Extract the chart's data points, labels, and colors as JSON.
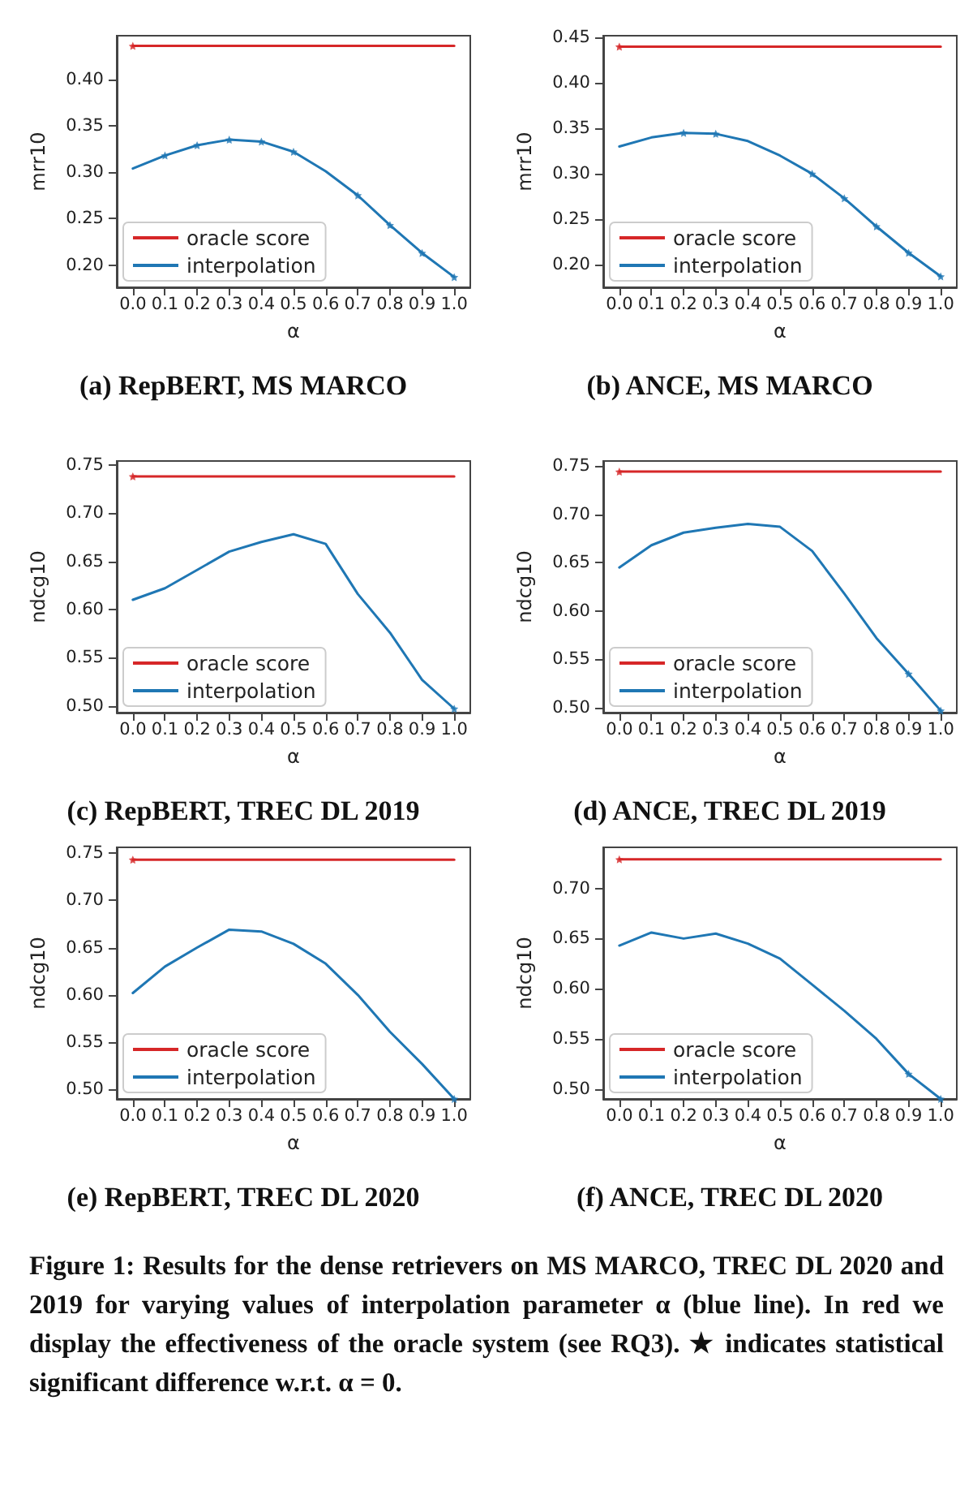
{
  "chart_data": [
    {
      "type": "line",
      "title": "(a) RepBERT, MS MARCO",
      "xlabel": "α",
      "ylabel": "mrr10",
      "legend": "bottom left",
      "grid": false,
      "marker": "none",
      "line_style": "solid",
      "xlim": [
        -0.05,
        1.05
      ],
      "xticks": [
        {
          "value": 0,
          "label": "0.0"
        },
        {
          "value": 0.1,
          "label": "0.1"
        },
        {
          "value": 0.2,
          "label": "0.2"
        },
        {
          "value": 0.3,
          "label": "0.3"
        },
        {
          "value": 0.4,
          "label": "0.4"
        },
        {
          "value": 0.5,
          "label": "0.5"
        },
        {
          "value": 0.6,
          "label": "0.6"
        },
        {
          "value": 0.7,
          "label": "0.7"
        },
        {
          "value": 0.8,
          "label": "0.8"
        },
        {
          "value": 0.9,
          "label": "0.9"
        },
        {
          "value": 1,
          "label": "1.0"
        }
      ],
      "ylim": [
        0.176,
        0.447
      ],
      "yticks": [
        {
          "value": 0.2,
          "label": "0.20"
        },
        {
          "value": 0.25,
          "label": "0.25"
        },
        {
          "value": 0.3,
          "label": "0.30"
        },
        {
          "value": 0.35,
          "label": "0.35"
        },
        {
          "value": 0.4,
          "label": "0.40"
        }
      ],
      "series": [
        {
          "name": "oracle score",
          "color": "#d62728",
          "x": [
            0,
            1
          ],
          "values": [
            0.436,
            0.436
          ]
        },
        {
          "name": "interpolation",
          "color": "#1f77b4",
          "x": [
            0,
            0.1,
            0.2,
            0.3,
            0.4,
            0.5,
            0.6,
            0.7,
            0.8,
            0.9,
            1
          ],
          "values": [
            0.304,
            0.318,
            0.329,
            0.335,
            0.333,
            0.322,
            0.301,
            0.275,
            0.243,
            0.213,
            0.187
          ]
        },
        {
          "type": "scatter",
          "marker": "star",
          "color": "#d62728",
          "x": [
            0
          ],
          "values": [
            0.436
          ]
        },
        {
          "type": "scatter",
          "marker": "star",
          "color": "#1f77b4",
          "x": [
            0.1,
            0.2,
            0.3,
            0.4,
            0.5,
            0.7,
            0.8,
            0.9,
            1
          ],
          "values": [
            0.318,
            0.329,
            0.335,
            0.333,
            0.322,
            0.275,
            0.243,
            0.213,
            0.187
          ]
        }
      ]
    },
    {
      "type": "line",
      "title": "(b) ANCE, MS MARCO",
      "xlabel": "α",
      "ylabel": "mrr10",
      "legend": "bottom left",
      "grid": false,
      "marker": "none",
      "line_style": "solid",
      "xlim": [
        -0.05,
        1.05
      ],
      "xticks": [
        {
          "value": 0,
          "label": "0.0"
        },
        {
          "value": 0.1,
          "label": "0.1"
        },
        {
          "value": 0.2,
          "label": "0.2"
        },
        {
          "value": 0.3,
          "label": "0.3"
        },
        {
          "value": 0.4,
          "label": "0.4"
        },
        {
          "value": 0.5,
          "label": "0.5"
        },
        {
          "value": 0.6,
          "label": "0.6"
        },
        {
          "value": 0.7,
          "label": "0.7"
        },
        {
          "value": 0.8,
          "label": "0.8"
        },
        {
          "value": 0.9,
          "label": "0.9"
        },
        {
          "value": 1,
          "label": "1.0"
        }
      ],
      "ylim": [
        0.175,
        0.452
      ],
      "yticks": [
        {
          "value": 0.2,
          "label": "0.20"
        },
        {
          "value": 0.25,
          "label": "0.25"
        },
        {
          "value": 0.3,
          "label": "0.30"
        },
        {
          "value": 0.35,
          "label": "0.35"
        },
        {
          "value": 0.4,
          "label": "0.40"
        },
        {
          "value": 0.45,
          "label": "0.45"
        }
      ],
      "series": [
        {
          "name": "oracle score",
          "color": "#d62728",
          "x": [
            0,
            1
          ],
          "values": [
            0.44,
            0.44
          ]
        },
        {
          "name": "interpolation",
          "color": "#1f77b4",
          "x": [
            0,
            0.1,
            0.2,
            0.3,
            0.4,
            0.5,
            0.6,
            0.7,
            0.8,
            0.9,
            1
          ],
          "values": [
            0.33,
            0.34,
            0.345,
            0.344,
            0.336,
            0.32,
            0.3,
            0.273,
            0.242,
            0.213,
            0.187
          ]
        },
        {
          "type": "scatter",
          "marker": "star",
          "color": "#d62728",
          "x": [
            0
          ],
          "values": [
            0.44
          ]
        },
        {
          "type": "scatter",
          "marker": "star",
          "color": "#1f77b4",
          "x": [
            0.2,
            0.3,
            0.6,
            0.7,
            0.8,
            0.9,
            1
          ],
          "values": [
            0.345,
            0.344,
            0.3,
            0.273,
            0.242,
            0.213,
            0.187
          ]
        }
      ]
    },
    {
      "type": "line",
      "title": "(c) RepBERT, TREC DL 2019",
      "xlabel": "α",
      "ylabel": "ndcg10",
      "legend": "bottom left",
      "grid": false,
      "marker": "none",
      "line_style": "solid",
      "xlim": [
        -0.05,
        1.05
      ],
      "xticks": [
        {
          "value": 0,
          "label": "0.0"
        },
        {
          "value": 0.1,
          "label": "0.1"
        },
        {
          "value": 0.2,
          "label": "0.2"
        },
        {
          "value": 0.3,
          "label": "0.3"
        },
        {
          "value": 0.4,
          "label": "0.4"
        },
        {
          "value": 0.5,
          "label": "0.5"
        },
        {
          "value": 0.6,
          "label": "0.6"
        },
        {
          "value": 0.7,
          "label": "0.7"
        },
        {
          "value": 0.8,
          "label": "0.8"
        },
        {
          "value": 0.9,
          "label": "0.9"
        },
        {
          "value": 1,
          "label": "1.0"
        }
      ],
      "ylim": [
        0.493,
        0.754
      ],
      "yticks": [
        {
          "value": 0.5,
          "label": "0.50"
        },
        {
          "value": 0.55,
          "label": "0.55"
        },
        {
          "value": 0.6,
          "label": "0.60"
        },
        {
          "value": 0.65,
          "label": "0.65"
        },
        {
          "value": 0.7,
          "label": "0.70"
        },
        {
          "value": 0.75,
          "label": "0.75"
        }
      ],
      "series": [
        {
          "name": "oracle score",
          "color": "#d62728",
          "x": [
            0,
            1
          ],
          "values": [
            0.738,
            0.738
          ]
        },
        {
          "name": "interpolation",
          "color": "#1f77b4",
          "x": [
            0,
            0.1,
            0.2,
            0.3,
            0.4,
            0.5,
            0.6,
            0.7,
            0.8,
            0.9,
            1
          ],
          "values": [
            0.61,
            0.622,
            0.641,
            0.66,
            0.67,
            0.678,
            0.668,
            0.616,
            0.576,
            0.527,
            0.497
          ]
        },
        {
          "type": "scatter",
          "marker": "star",
          "color": "#d62728",
          "x": [
            0
          ],
          "values": [
            0.738
          ]
        },
        {
          "type": "scatter",
          "marker": "star",
          "color": "#1f77b4",
          "x": [
            1
          ],
          "values": [
            0.497
          ]
        }
      ]
    },
    {
      "type": "line",
      "title": "(d) ANCE, TREC DL 2019",
      "xlabel": "α",
      "ylabel": "ndcg10",
      "legend": "bottom left",
      "grid": false,
      "marker": "none",
      "line_style": "solid",
      "xlim": [
        -0.05,
        1.05
      ],
      "xticks": [
        {
          "value": 0,
          "label": "0.0"
        },
        {
          "value": 0.1,
          "label": "0.1"
        },
        {
          "value": 0.2,
          "label": "0.2"
        },
        {
          "value": 0.3,
          "label": "0.3"
        },
        {
          "value": 0.4,
          "label": "0.4"
        },
        {
          "value": 0.5,
          "label": "0.5"
        },
        {
          "value": 0.6,
          "label": "0.6"
        },
        {
          "value": 0.7,
          "label": "0.7"
        },
        {
          "value": 0.8,
          "label": "0.8"
        },
        {
          "value": 0.9,
          "label": "0.9"
        },
        {
          "value": 1,
          "label": "1.0"
        }
      ],
      "ylim": [
        0.495,
        0.755
      ],
      "yticks": [
        {
          "value": 0.5,
          "label": "0.50"
        },
        {
          "value": 0.55,
          "label": "0.55"
        },
        {
          "value": 0.6,
          "label": "0.60"
        },
        {
          "value": 0.65,
          "label": "0.65"
        },
        {
          "value": 0.7,
          "label": "0.70"
        },
        {
          "value": 0.75,
          "label": "0.75"
        }
      ],
      "series": [
        {
          "name": "oracle score",
          "color": "#d62728",
          "x": [
            0,
            1
          ],
          "values": [
            0.744,
            0.744
          ]
        },
        {
          "name": "interpolation",
          "color": "#1f77b4",
          "x": [
            0,
            0.1,
            0.2,
            0.3,
            0.4,
            0.5,
            0.6,
            0.7,
            0.8,
            0.9,
            1
          ],
          "values": [
            0.645,
            0.668,
            0.681,
            0.686,
            0.69,
            0.687,
            0.662,
            0.618,
            0.572,
            0.535,
            0.497
          ]
        },
        {
          "type": "scatter",
          "marker": "star",
          "color": "#d62728",
          "x": [
            0
          ],
          "values": [
            0.744
          ]
        },
        {
          "type": "scatter",
          "marker": "star",
          "color": "#1f77b4",
          "x": [
            0.9,
            1
          ],
          "values": [
            0.535,
            0.497
          ]
        }
      ]
    },
    {
      "type": "line",
      "title": "(e) RepBERT, TREC DL 2020",
      "xlabel": "α",
      "ylabel": "ndcg10",
      "legend": "bottom left",
      "grid": false,
      "marker": "none",
      "line_style": "solid",
      "xlim": [
        -0.05,
        1.05
      ],
      "xticks": [
        {
          "value": 0,
          "label": "0.0"
        },
        {
          "value": 0.1,
          "label": "0.1"
        },
        {
          "value": 0.2,
          "label": "0.2"
        },
        {
          "value": 0.3,
          "label": "0.3"
        },
        {
          "value": 0.4,
          "label": "0.4"
        },
        {
          "value": 0.5,
          "label": "0.5"
        },
        {
          "value": 0.6,
          "label": "0.6"
        },
        {
          "value": 0.7,
          "label": "0.7"
        },
        {
          "value": 0.8,
          "label": "0.8"
        },
        {
          "value": 0.9,
          "label": "0.9"
        },
        {
          "value": 1,
          "label": "1.0"
        }
      ],
      "ylim": [
        0.49,
        0.756
      ],
      "yticks": [
        {
          "value": 0.5,
          "label": "0.50"
        },
        {
          "value": 0.55,
          "label": "0.55"
        },
        {
          "value": 0.6,
          "label": "0.60"
        },
        {
          "value": 0.65,
          "label": "0.65"
        },
        {
          "value": 0.7,
          "label": "0.70"
        },
        {
          "value": 0.75,
          "label": "0.75"
        }
      ],
      "series": [
        {
          "name": "oracle score",
          "color": "#d62728",
          "x": [
            0,
            1
          ],
          "values": [
            0.743,
            0.743
          ]
        },
        {
          "name": "interpolation",
          "color": "#1f77b4",
          "x": [
            0,
            0.1,
            0.2,
            0.3,
            0.4,
            0.5,
            0.6,
            0.7,
            0.8,
            0.9,
            1
          ],
          "values": [
            0.602,
            0.63,
            0.65,
            0.669,
            0.667,
            0.654,
            0.633,
            0.6,
            0.561,
            0.527,
            0.49
          ]
        },
        {
          "type": "scatter",
          "marker": "star",
          "color": "#d62728",
          "x": [
            0
          ],
          "values": [
            0.743
          ]
        },
        {
          "type": "scatter",
          "marker": "star",
          "color": "#1f77b4",
          "x": [
            1
          ],
          "values": [
            0.49
          ]
        }
      ]
    },
    {
      "type": "line",
      "title": "(f) ANCE, TREC DL 2020",
      "xlabel": "α",
      "ylabel": "ndcg10",
      "legend": "bottom left",
      "grid": false,
      "marker": "none",
      "line_style": "solid",
      "xlim": [
        -0.05,
        1.05
      ],
      "xticks": [
        {
          "value": 0,
          "label": "0.0"
        },
        {
          "value": 0.1,
          "label": "0.1"
        },
        {
          "value": 0.2,
          "label": "0.2"
        },
        {
          "value": 0.3,
          "label": "0.3"
        },
        {
          "value": 0.4,
          "label": "0.4"
        },
        {
          "value": 0.5,
          "label": "0.5"
        },
        {
          "value": 0.6,
          "label": "0.6"
        },
        {
          "value": 0.7,
          "label": "0.7"
        },
        {
          "value": 0.8,
          "label": "0.8"
        },
        {
          "value": 0.9,
          "label": "0.9"
        },
        {
          "value": 1,
          "label": "1.0"
        }
      ],
      "ylim": [
        0.49,
        0.741
      ],
      "yticks": [
        {
          "value": 0.5,
          "label": "0.50"
        },
        {
          "value": 0.55,
          "label": "0.55"
        },
        {
          "value": 0.6,
          "label": "0.60"
        },
        {
          "value": 0.65,
          "label": "0.65"
        },
        {
          "value": 0.7,
          "label": "0.70"
        }
      ],
      "annotations": [
        "Figure 1: Results for the dense retrievers on MS MARCO, TREC DL 2020 and 2019 for varying values of interpolation parameter α (blue line). In red we display the effectiveness of the oracle system (see RQ3). ★ indicates statistical significant difference w.r.t. α = 0."
      ],
      "series": [
        {
          "name": "oracle score",
          "color": "#d62728",
          "x": [
            0,
            1
          ],
          "values": [
            0.729,
            0.729
          ]
        },
        {
          "name": "interpolation",
          "color": "#1f77b4",
          "x": [
            0,
            0.1,
            0.2,
            0.3,
            0.4,
            0.5,
            0.6,
            0.7,
            0.8,
            0.9,
            1
          ],
          "values": [
            0.643,
            0.656,
            0.65,
            0.655,
            0.645,
            0.63,
            0.604,
            0.578,
            0.55,
            0.515,
            0.49
          ]
        },
        {
          "type": "scatter",
          "marker": "star",
          "color": "#d62728",
          "x": [
            0
          ],
          "values": [
            0.729
          ]
        },
        {
          "type": "scatter",
          "marker": "star",
          "color": "#1f77b4",
          "x": [
            0.9,
            1
          ],
          "values": [
            0.515,
            0.49
          ]
        }
      ]
    }
  ]
}
